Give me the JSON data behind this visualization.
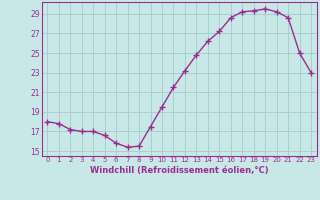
{
  "x": [
    0,
    1,
    2,
    3,
    4,
    5,
    6,
    7,
    8,
    9,
    10,
    11,
    12,
    13,
    14,
    15,
    16,
    17,
    18,
    19,
    20,
    21,
    22,
    23
  ],
  "y": [
    18.0,
    17.8,
    17.2,
    17.0,
    17.0,
    16.6,
    15.8,
    15.4,
    15.5,
    17.5,
    19.5,
    21.5,
    23.2,
    24.8,
    26.2,
    27.2,
    28.6,
    29.2,
    29.3,
    29.5,
    29.2,
    28.6,
    25.0,
    23.0
  ],
  "line_color": "#9b2d8e",
  "marker": "+",
  "marker_size": 4,
  "bg_color": "#c8e8e8",
  "grid_color": "#aacfcf",
  "xlabel": "Windchill (Refroidissement éolien,°C)",
  "xlabel_color": "#9b2d8e",
  "tick_color": "#9b2d8e",
  "ylim": [
    14.5,
    30.2
  ],
  "yticks": [
    15,
    17,
    19,
    21,
    23,
    25,
    27,
    29
  ],
  "xticks": [
    0,
    1,
    2,
    3,
    4,
    5,
    6,
    7,
    8,
    9,
    10,
    11,
    12,
    13,
    14,
    15,
    16,
    17,
    18,
    19,
    20,
    21,
    22,
    23
  ],
  "line_width": 1.0,
  "spine_color": "#9b2d8e"
}
